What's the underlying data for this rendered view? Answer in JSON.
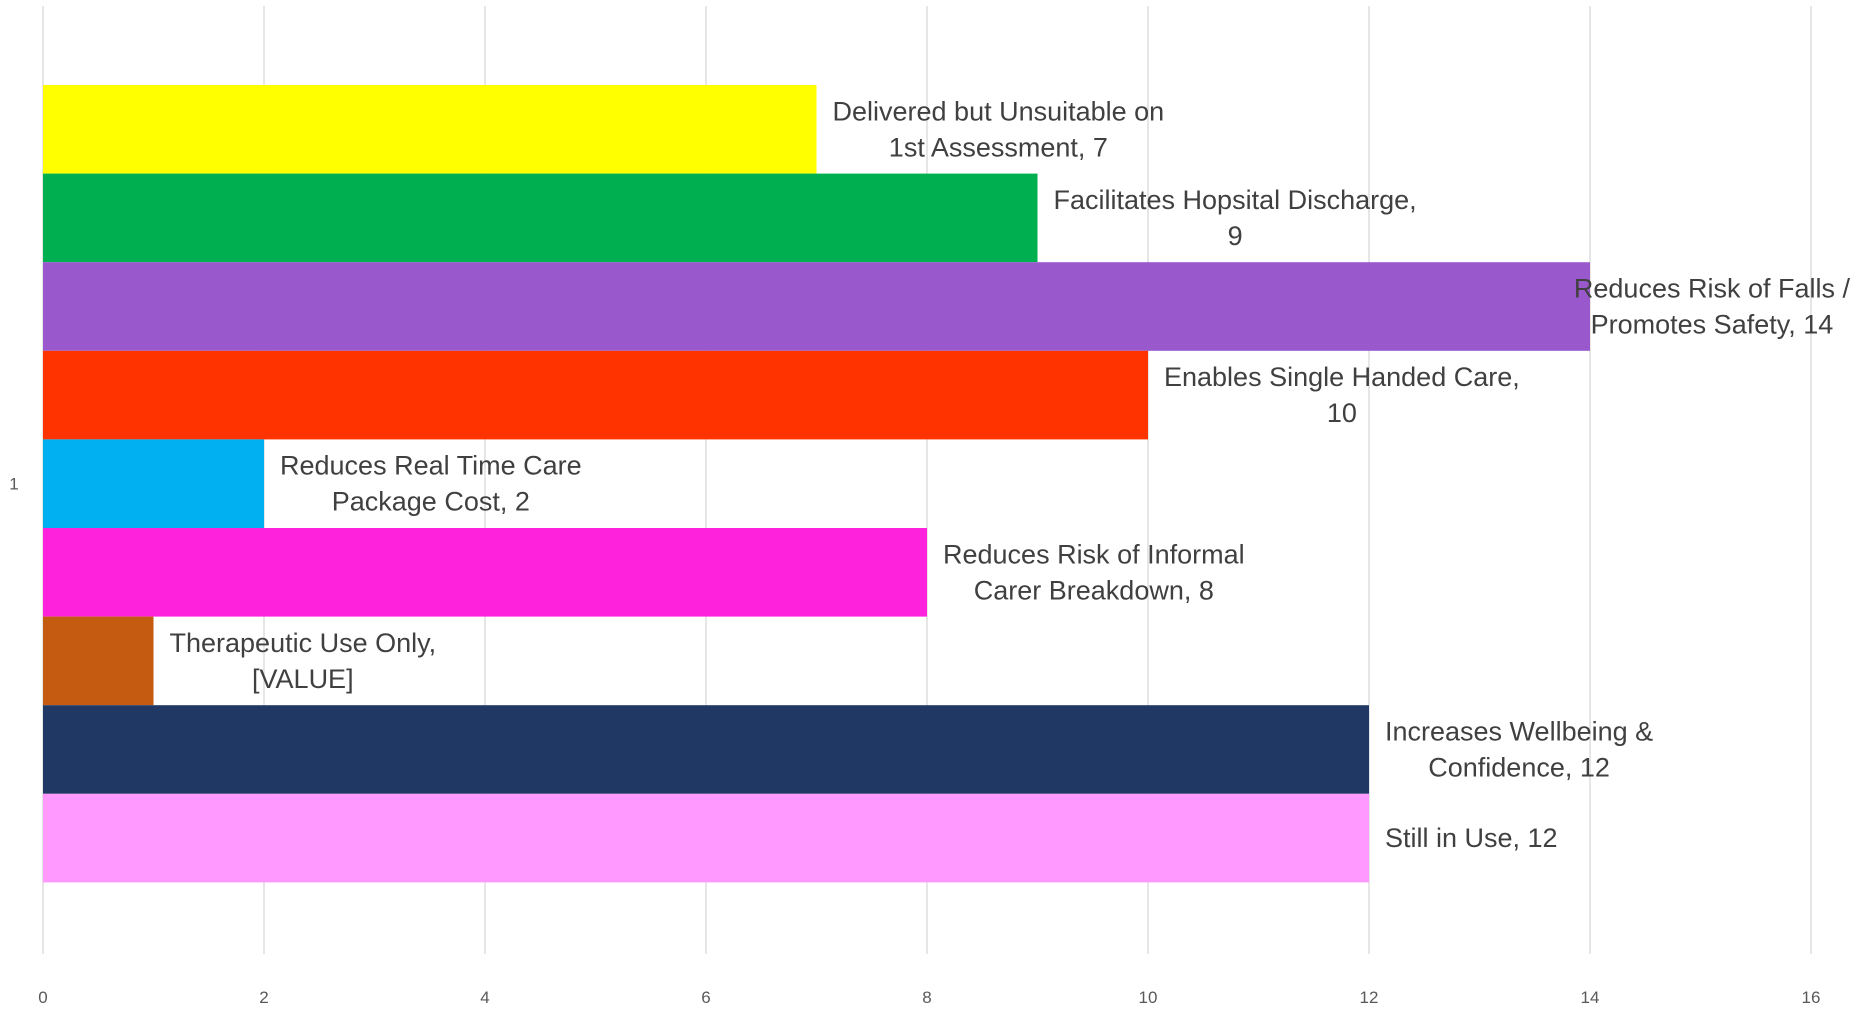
{
  "chart_data": {
    "type": "bar",
    "orientation": "horizontal",
    "categories": [
      "1"
    ],
    "xlim": [
      0,
      16
    ],
    "x_ticks": [
      0,
      2,
      4,
      6,
      8,
      10,
      12,
      14,
      16
    ],
    "grid": true,
    "legend": "none",
    "series": [
      {
        "name": "Delivered but Unsuitable on 1st Assessment",
        "values": [
          7
        ],
        "color": "#ffff00",
        "label": [
          "Delivered but Unsuitable on",
          "1st Assessment, 7"
        ]
      },
      {
        "name": "Facilitates Hopsital Discharge",
        "values": [
          9
        ],
        "color": "#00b050",
        "label": [
          "Facilitates Hopsital Discharge,",
          "9"
        ]
      },
      {
        "name": "Reduces Risk of Falls / Promotes Safety",
        "values": [
          14
        ],
        "color": "#9958cc",
        "label": [
          "Reduces Risk of Falls /",
          "Promotes Safety, 14"
        ]
      },
      {
        "name": "Enables Single Handed Care",
        "values": [
          10
        ],
        "color": "#ff3300",
        "label": [
          "Enables Single Handed Care,",
          "10"
        ]
      },
      {
        "name": "Reduces Real Time Care Package Cost",
        "values": [
          2
        ],
        "color": "#00b0f0",
        "label": [
          "Reduces Real Time Care",
          "Package Cost, 2"
        ]
      },
      {
        "name": "Reduces Risk of Informal Carer Breakdown",
        "values": [
          8
        ],
        "color": "#ff22dd",
        "label": [
          "Reduces Risk of Informal",
          "Carer Breakdown, 8"
        ]
      },
      {
        "name": "Therapeutic Use Only",
        "values": [
          1
        ],
        "color": "#c55a11",
        "label": [
          "Therapeutic Use Only,",
          "[VALUE]"
        ]
      },
      {
        "name": "Increases Wellbeing & Confidence",
        "values": [
          12
        ],
        "color": "#203864",
        "label": [
          "Increases Wellbeing &",
          "Confidence, 12"
        ]
      },
      {
        "name": "Still in Use",
        "values": [
          12
        ],
        "color": "#ff99ff",
        "label": [
          "Still in Use, 12"
        ]
      }
    ]
  }
}
